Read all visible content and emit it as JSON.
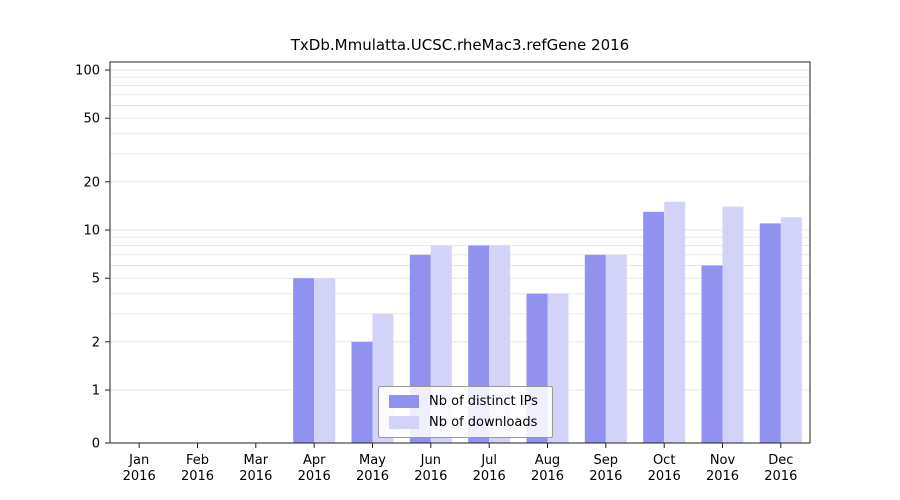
{
  "title": "TxDb.Mmulatta.UCSC.rheMac3.refGene 2016",
  "chart_data": {
    "type": "bar",
    "title": "TxDb.Mmulatta.UCSC.rheMac3.refGene 2016",
    "categories": [
      "Jan",
      "Feb",
      "Mar",
      "Apr",
      "May",
      "Jun",
      "Jul",
      "Aug",
      "Sep",
      "Oct",
      "Nov",
      "Dec"
    ],
    "year": "2016",
    "series": [
      {
        "name": "Nb of distinct IPs",
        "color": "#9191ef",
        "values": [
          0,
          0,
          0,
          5,
          2,
          7,
          8,
          4,
          7,
          13,
          6,
          11
        ]
      },
      {
        "name": "Nb of downloads",
        "color": "#d3d3f9",
        "values": [
          0,
          0,
          0,
          5,
          3,
          8,
          8,
          4,
          7,
          15,
          14,
          12
        ]
      }
    ],
    "yticks": [
      0,
      1,
      2,
      5,
      10,
      20,
      50,
      100
    ],
    "yscale": "log-with-zero-baseline",
    "ylim": [
      0,
      100
    ],
    "xlabel": "",
    "ylabel": "",
    "grid": true,
    "grid_color": "#e7e7e7",
    "legend_position": "bottom-center"
  }
}
